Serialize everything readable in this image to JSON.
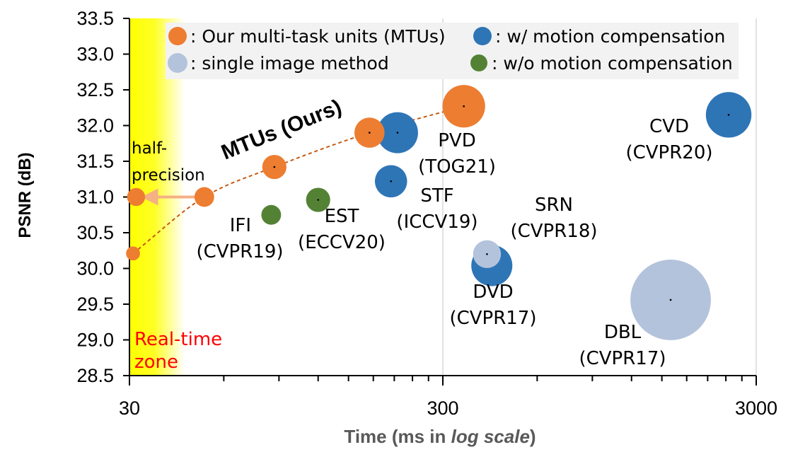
{
  "chart_data": {
    "type": "scatter",
    "xscale": "log",
    "xlim": [
      30,
      3000
    ],
    "ylim": [
      28.5,
      33.5
    ],
    "xticks": [
      "30",
      "300",
      "3000"
    ],
    "yticks": [
      "28.5",
      "29.0",
      "29.5",
      "30.0",
      "30.5",
      "31.0",
      "31.5",
      "32.0",
      "32.5",
      "33.0",
      "33.5"
    ],
    "xlabel_parts": [
      "Time (ms in ",
      "log scale",
      ")"
    ],
    "ylabel": "PSNR (dB)",
    "grid": "vertical",
    "real_time_zone": {
      "x_max": 45,
      "label_line1": "Real-time",
      "label_line2": "zone"
    },
    "legend": {
      "placement": "top",
      "entries": [
        {
          "label": ": Our multi-task units (MTUs)",
          "color": "#ed7d31"
        },
        {
          "label": ": w/ motion compensation",
          "color": "#2e75b6"
        },
        {
          "label": ": single image method",
          "color": "#b4c3dc"
        },
        {
          "label": ": w/o motion compensation",
          "color": "#548235"
        }
      ]
    },
    "series": [
      {
        "name": "Our multi-task units (MTUs)",
        "color": "#ed7d31",
        "curve_label": "MTUs (Ours)",
        "points": [
          {
            "x": 30.8,
            "y": 30.21,
            "size": 0.3
          },
          {
            "x": 31.5,
            "y": 31.0,
            "size": 0.5
          },
          {
            "x": 52,
            "y": 31.0,
            "size": 0.6
          },
          {
            "x": 87,
            "y": 31.42,
            "size": 0.9
          },
          {
            "x": 175,
            "y": 31.9,
            "size": 1.4
          },
          {
            "x": 350,
            "y": 32.27,
            "size": 2.8
          }
        ]
      },
      {
        "name": "w/ motion compensation",
        "color": "#2e75b6",
        "points": [
          {
            "x": 215,
            "y": 31.9,
            "size": 2.6,
            "label": [
              "PVD",
              "(TOG21)"
            ]
          },
          {
            "x": 205,
            "y": 31.22,
            "size": 1.6,
            "label": [
              "STF",
              "(ICCV19)"
            ]
          },
          {
            "x": 430,
            "y": 30.04,
            "size": 2.6,
            "label": [
              "DVD",
              "(CVPR17)"
            ]
          },
          {
            "x": 2450,
            "y": 32.15,
            "size": 3.2,
            "label": [
              "CVD",
              "(CVPR20)"
            ]
          }
        ]
      },
      {
        "name": "single image method",
        "color": "#b4c3dc",
        "points": [
          {
            "x": 415,
            "y": 30.2,
            "size": 1.2,
            "label": [
              "SRN",
              "(CVPR18)"
            ]
          },
          {
            "x": 1600,
            "y": 29.56,
            "size": 10,
            "label": [
              "DBL",
              "(CVPR17)"
            ]
          }
        ]
      },
      {
        "name": "w/o motion compensation",
        "color": "#548235",
        "points": [
          {
            "x": 85,
            "y": 30.75,
            "size": 0.6,
            "label": [
              "IFI",
              "(CVPR19)"
            ]
          },
          {
            "x": 120,
            "y": 30.96,
            "size": 0.9,
            "label": [
              "EST",
              "(ECCV20)"
            ]
          }
        ]
      }
    ],
    "annotations": [
      {
        "text_line1": "half-",
        "text_line2": "precision",
        "arrow_from": [
          52,
          31.0
        ],
        "arrow_to": [
          31.5,
          31.0
        ]
      }
    ]
  }
}
